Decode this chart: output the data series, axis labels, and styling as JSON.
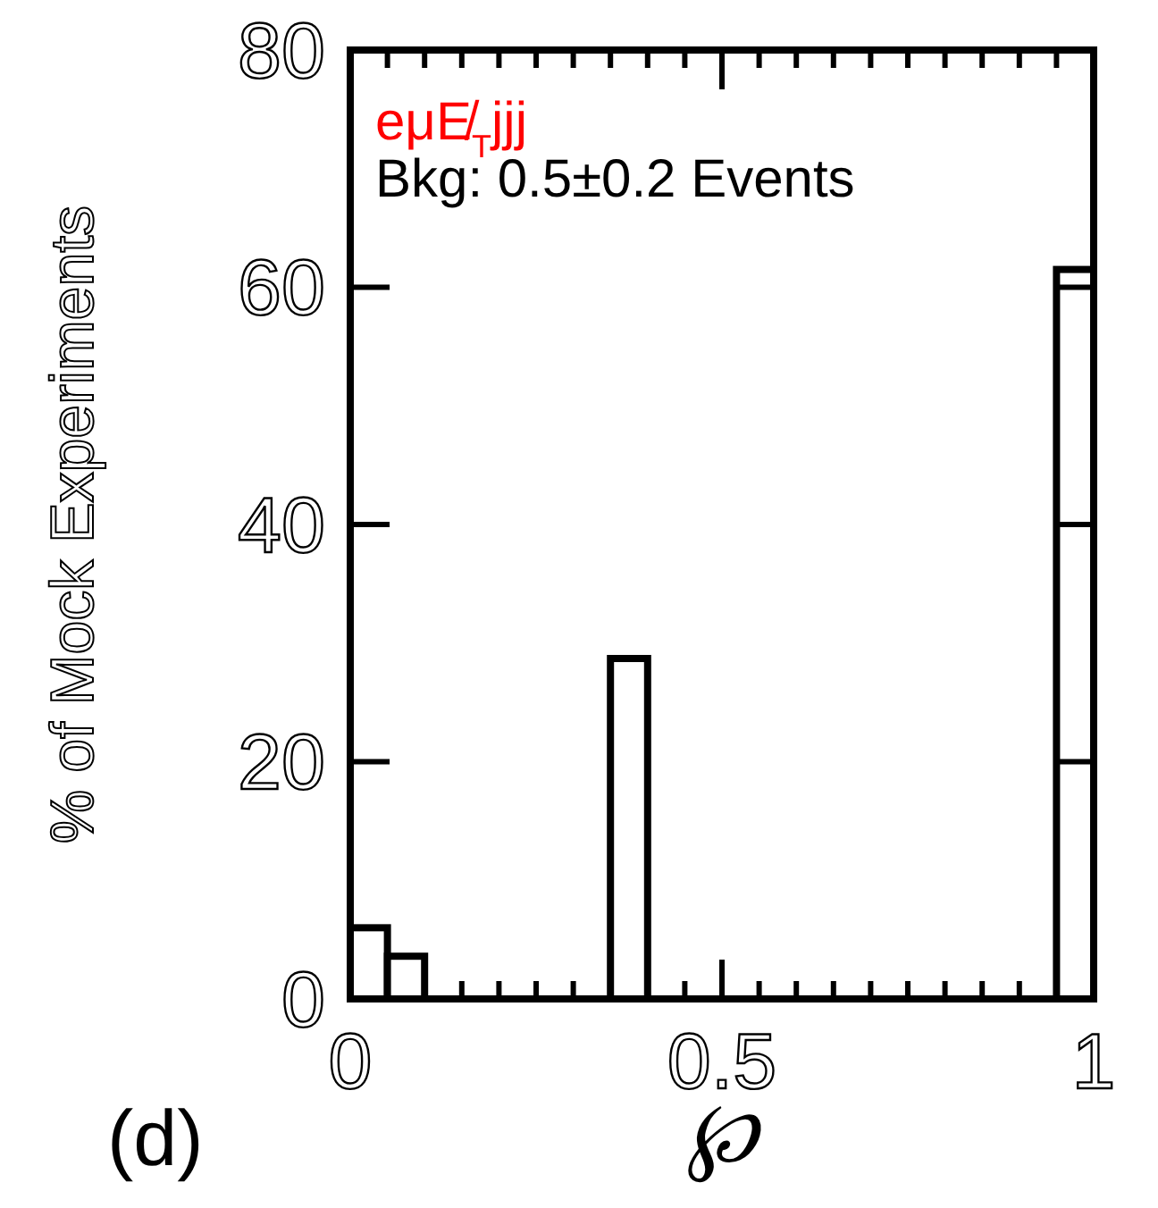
{
  "chart_data": {
    "type": "histogram",
    "xlabel": "℘",
    "ylabel": "% of Mock Experiments",
    "bins": [
      0,
      0.05,
      0.1,
      0.15,
      0.2,
      0.25,
      0.3,
      0.35,
      0.4,
      0.45,
      0.5,
      0.55,
      0.6,
      0.65,
      0.7,
      0.75,
      0.8,
      0.85,
      0.9,
      0.95,
      1
    ],
    "values": [
      6,
      3.6,
      0,
      0,
      0,
      0,
      0,
      28.7,
      0,
      0,
      0,
      0,
      0,
      0,
      0,
      0,
      0,
      0,
      0,
      61.5
    ],
    "color": "#000000",
    "xlim": [
      0,
      1
    ],
    "xticks": [
      0,
      0.5,
      1
    ],
    "ylim": [
      0,
      80
    ],
    "yticks": [
      0,
      20,
      40,
      60,
      80
    ],
    "annotations": [
      "eμE̸$_{T}$jjj",
      "Bkg: 0.5±0.2 Events",
      "(d)"
    ]
  }
}
